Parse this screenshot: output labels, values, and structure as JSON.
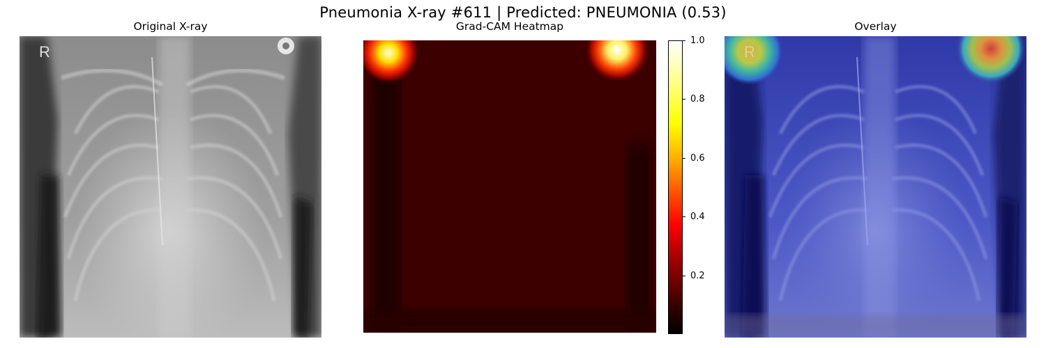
{
  "figure": {
    "title": "Pneumonia X-ray #611 | Predicted: PNEUMONIA (0.53)"
  },
  "panels": [
    {
      "title": "Original X-ray",
      "marker": "R"
    },
    {
      "title": "Grad-CAM Heatmap"
    },
    {
      "title": "Overlay",
      "marker": "R"
    }
  ],
  "colorbar": {
    "colormap": "hot",
    "range": [
      0,
      1
    ],
    "ticks": [
      "0.2",
      "0.4",
      "0.6",
      "0.8",
      "1.0"
    ],
    "tick_values": [
      0.2,
      0.4,
      0.6,
      0.8,
      1.0
    ]
  },
  "colors": {
    "overlay_tint": "#1a23c8",
    "heat_low": "#000000",
    "heat_mid": "#ff0000",
    "heat_high": "#ffffff"
  }
}
